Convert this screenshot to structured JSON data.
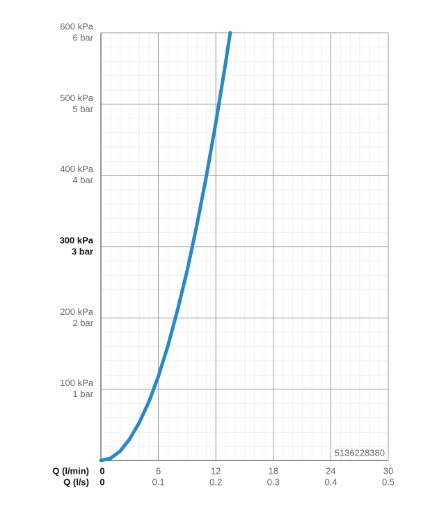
{
  "chart_data": {
    "type": "line",
    "x_label": "Q (l/min)",
    "x2_label": "Q (l/s)",
    "x": [
      0,
      1,
      2,
      3,
      4,
      5,
      6,
      7,
      8,
      9,
      10,
      11,
      12,
      13,
      13.5
    ],
    "series": [
      {
        "color": "#2a87c8",
        "values": [
          0,
          3,
          13,
          30,
          53,
          82,
          118,
          161,
          211,
          266,
          329,
          398,
          474,
          556,
          600
        ]
      }
    ],
    "xlim": [
      0,
      30
    ],
    "xticks": [
      0,
      6,
      12,
      18,
      24,
      30
    ],
    "x2lim": [
      0,
      0.5
    ],
    "x2ticks": [
      0,
      0.1,
      0.2,
      0.3,
      0.4,
      0.5
    ],
    "ylim": [
      0,
      600
    ],
    "yticks": [
      {
        "value": 600,
        "label": "600 kPa"
      },
      {
        "value": 500,
        "label": "500 kPa"
      },
      {
        "value": 400,
        "label": "400 kPa"
      },
      {
        "value": 300,
        "label": "300 kPa"
      },
      {
        "value": 200,
        "label": "200 kPa"
      },
      {
        "value": 100,
        "label": "100 kPa"
      }
    ],
    "y2lim": [
      0,
      6
    ],
    "y2ticks": [
      {
        "value": 6,
        "label": "6 bar"
      },
      {
        "value": 5,
        "label": "5 bar"
      },
      {
        "value": 4,
        "label": "4 bar"
      },
      {
        "value": 3,
        "label": "3 bar"
      },
      {
        "value": 2,
        "label": "2 bar"
      },
      {
        "value": 1,
        "label": "1 bar"
      }
    ],
    "bold_ytick_value": 300,
    "annotation": "5136228380",
    "grid": true
  }
}
